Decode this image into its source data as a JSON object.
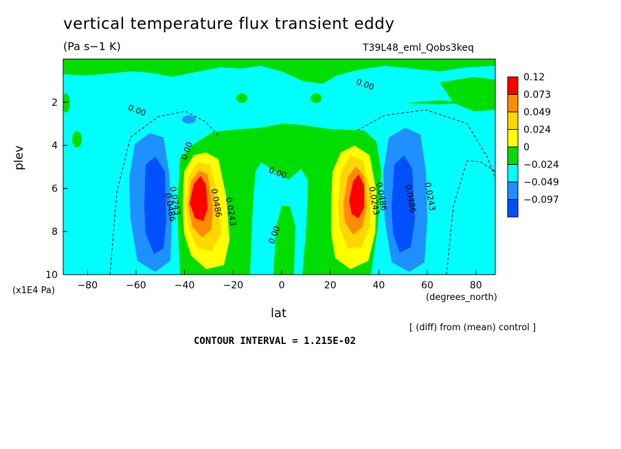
{
  "title": "vertical temperature flux transient eddy",
  "units_label": "(Pa s−1 K)",
  "run_id": "T39L48_eml_Qobs3keq",
  "footer_diff": "[ (diff) from (mean) control ]",
  "contour_interval": "CONTOUR INTERVAL = 1.215E-02",
  "chart_data": {
    "type": "heatmap",
    "title": "vertical temperature flux transient eddy",
    "xlabel": "lat",
    "xunit": "(degrees_north)",
    "ylabel": "plev",
    "yunit": "(x1E4 Pa)",
    "xlim": [
      -90,
      88
    ],
    "ylim": [
      10,
      0
    ],
    "x_ticks": [
      -80,
      -60,
      -40,
      -20,
      0,
      20,
      40,
      60,
      80
    ],
    "x_tick_labels": [
      "−80",
      "−60",
      "−40",
      "−20",
      "0",
      "20",
      "40",
      "60",
      "80"
    ],
    "y_ticks": [
      2,
      4,
      6,
      8,
      10
    ],
    "y_tick_labels": [
      "2",
      "4",
      "6",
      "8",
      "10"
    ],
    "colorbar": {
      "labels": [
        "0.12",
        "0.073",
        "0.049",
        "0.024",
        "0",
        "−0.024",
        "−0.049",
        "−0.097"
      ],
      "colors": [
        "#ff0000",
        "#ff8c00",
        "#ffd700",
        "#ffff00",
        "#00dd00",
        "#00ffff",
        "#1e90ff",
        "#0050ff"
      ]
    },
    "contour_labels": [
      {
        "text": "0.00",
        "lat": -60,
        "plev": 2.5
      },
      {
        "text": "0.00",
        "lat": 34,
        "plev": 1.3
      },
      {
        "text": "0.00",
        "lat": -38,
        "plev": 4.3
      },
      {
        "text": "0.00",
        "lat": -2,
        "plev": 5.4
      },
      {
        "text": "0.00",
        "lat": -2,
        "plev": 8.2
      },
      {
        "text": "0.0243",
        "lat": -45,
        "plev": 6.6
      },
      {
        "text": "0.0486",
        "lat": -47,
        "plev": 6.9
      },
      {
        "text": "0.0486",
        "lat": -28,
        "plev": 6.7
      },
      {
        "text": "0.0243",
        "lat": -22,
        "plev": 7.1
      },
      {
        "text": "0.0243",
        "lat": 37,
        "plev": 6.6
      },
      {
        "text": "0.0486",
        "lat": 40,
        "plev": 6.4
      },
      {
        "text": "0.0486",
        "lat": 52,
        "plev": 6.5
      },
      {
        "text": "0.0243",
        "lat": 60,
        "plev": 6.4
      }
    ]
  }
}
